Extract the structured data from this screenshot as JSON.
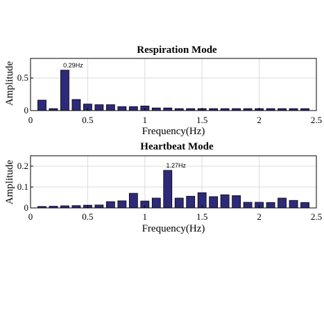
{
  "chart_data": [
    {
      "type": "bar",
      "title": "Respiration Mode",
      "xlabel": "Frequency(Hz)",
      "ylabel": "Amplitude",
      "xlim": [
        0,
        2.5
      ],
      "ylim": [
        0,
        0.8
      ],
      "xticks": [
        "0",
        "0.5",
        "1",
        "1.5",
        "2",
        "2.5"
      ],
      "yticks": [
        "0",
        "0.5"
      ],
      "grid": true,
      "bar_color": "#2e2a7a",
      "x": [
        0.1,
        0.2,
        0.3,
        0.4,
        0.5,
        0.6,
        0.7,
        0.8,
        0.9,
        1.0,
        1.1,
        1.2,
        1.3,
        1.4,
        1.5,
        1.6,
        1.7,
        1.8,
        1.9,
        2.0,
        2.1,
        2.2,
        2.3,
        2.4
      ],
      "values": [
        0.16,
        0.03,
        0.62,
        0.17,
        0.1,
        0.09,
        0.09,
        0.06,
        0.06,
        0.07,
        0.04,
        0.04,
        0.03,
        0.03,
        0.03,
        0.03,
        0.03,
        0.03,
        0.03,
        0.03,
        0.03,
        0.03,
        0.03,
        0.03
      ],
      "annotation": {
        "text": "0.29Hz",
        "x": 0.3,
        "y": 0.62
      }
    },
    {
      "type": "bar",
      "title": "Heartbeat Mode",
      "xlabel": "Frequency(Hz)",
      "ylabel": "Amplitude",
      "xlim": [
        0,
        2.5
      ],
      "ylim": [
        0,
        0.25
      ],
      "xticks": [
        "0",
        "0.5",
        "1",
        "1.5",
        "2",
        "2.5"
      ],
      "yticks": [
        "0",
        "0.1",
        "0.2"
      ],
      "grid": true,
      "bar_color": "#2e2a7a",
      "x": [
        0.1,
        0.2,
        0.3,
        0.4,
        0.5,
        0.6,
        0.7,
        0.8,
        0.9,
        1.0,
        1.1,
        1.2,
        1.3,
        1.4,
        1.5,
        1.6,
        1.7,
        1.8,
        1.9,
        2.0,
        2.1,
        2.2,
        2.3,
        2.4
      ],
      "values": [
        0.007,
        0.008,
        0.01,
        0.011,
        0.013,
        0.014,
        0.03,
        0.034,
        0.07,
        0.033,
        0.047,
        0.18,
        0.047,
        0.056,
        0.073,
        0.054,
        0.063,
        0.059,
        0.027,
        0.027,
        0.026,
        0.047,
        0.036,
        0.026
      ],
      "annotation": {
        "text": "1.27Hz",
        "x": 1.2,
        "y": 0.18
      }
    }
  ]
}
